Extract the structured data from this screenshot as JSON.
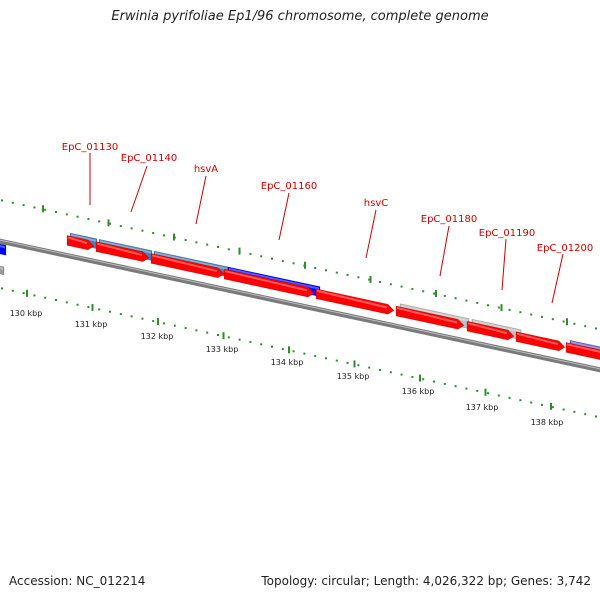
{
  "title": "Erwinia pyrifoliae Ep1/96 chromosome, complete genome",
  "footer": {
    "accession": "Accession: NC_012214",
    "topology": "Topology: circular; Length: 4,026,322 bp; Genes: 3,742"
  },
  "colors": {
    "label_red": "#cc0000",
    "forward_red": "#ff0000",
    "steel_blue": "#4682b4",
    "blue": "#0000ff",
    "light_gray": "#c0c0c0",
    "slate_blue": "#6a5acd",
    "backbone_gray": "#888888",
    "tick_green": "#2e8b2e"
  },
  "gene_labels": [
    "EpC_01130",
    "EpC_01140",
    "hsvA",
    "EpC_01160",
    "hsvC",
    "EpC_01180",
    "EpC_01190",
    "EpC_01200"
  ],
  "kbp_labels": [
    "130 kbp",
    "131 kbp",
    "132 kbp",
    "133 kbp",
    "134 kbp",
    "135 kbp",
    "136 kbp",
    "137 kbp",
    "138 kbp"
  ]
}
